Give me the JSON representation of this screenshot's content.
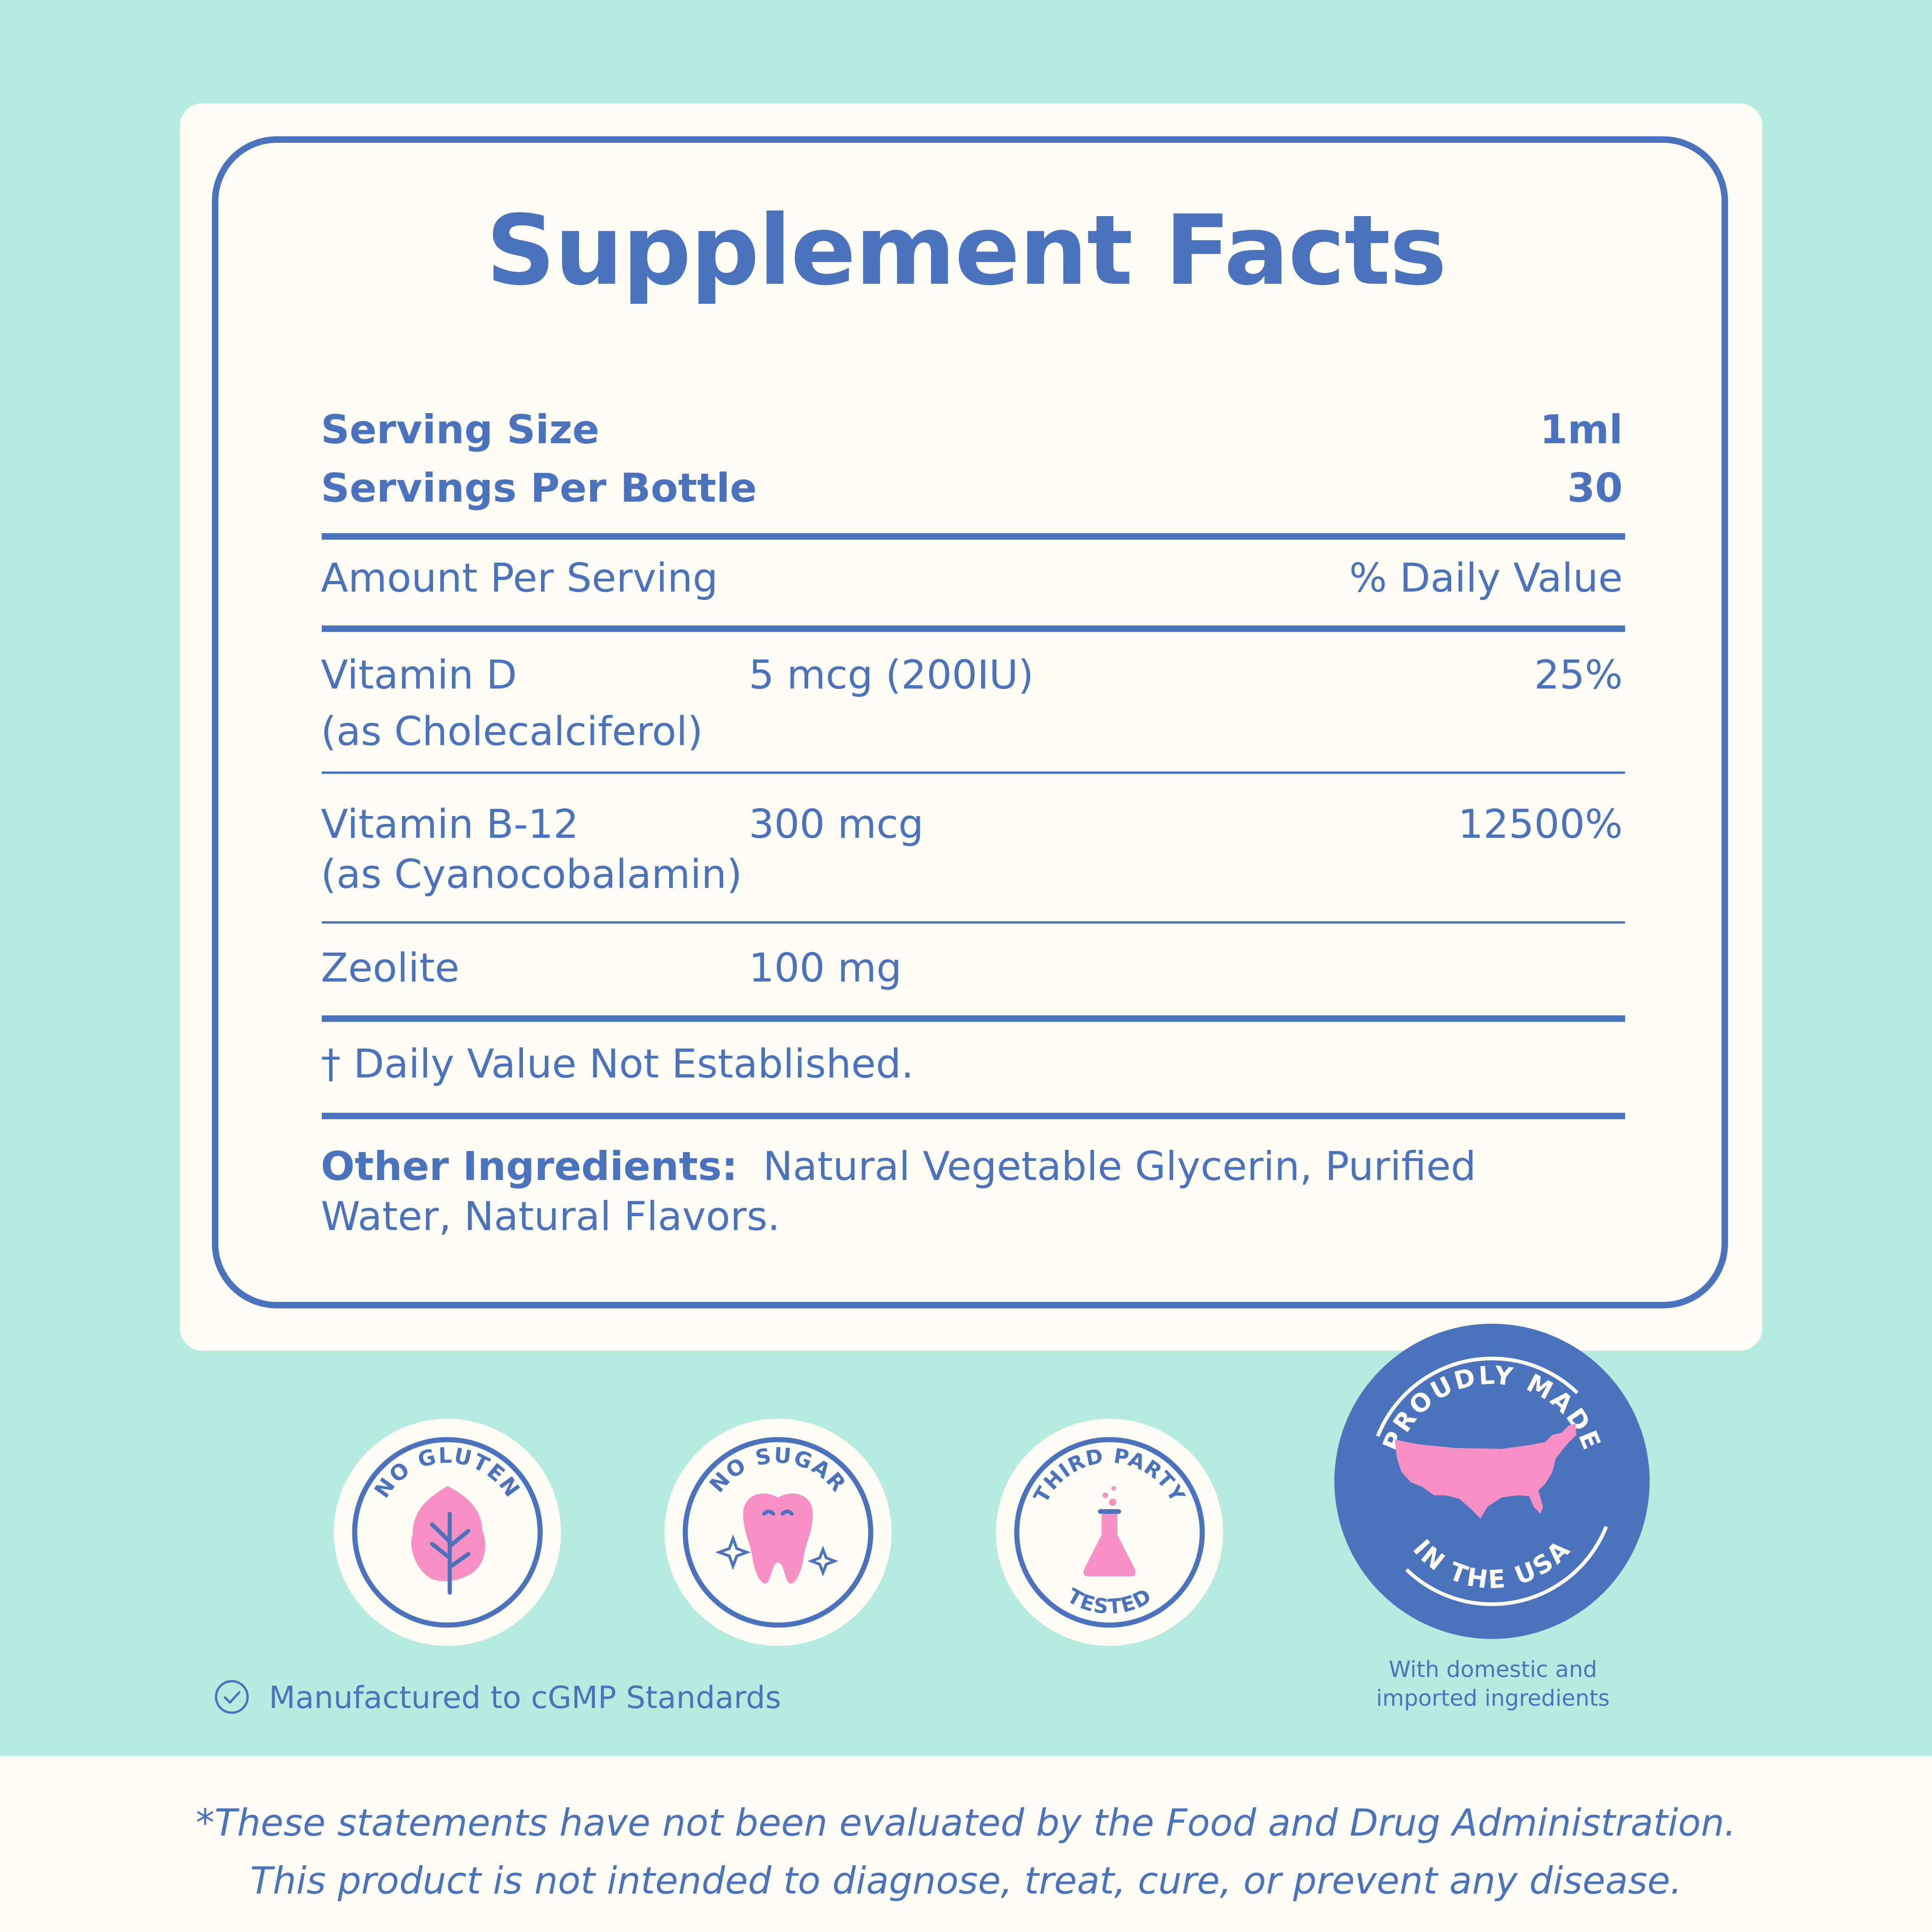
{
  "title": "Supplement Facts",
  "serving": {
    "size_label": "Serving Size",
    "size_value": "1ml",
    "per_label": "Servings Per Bottle",
    "per_value": "30"
  },
  "header": {
    "amount": "Amount Per Serving",
    "dv": "% Daily Value"
  },
  "rows": [
    {
      "name": "Vitamin D",
      "source": "(as Cholecalciferol)",
      "amount": "5 mcg (200IU)",
      "dv": "25%"
    },
    {
      "name": "Vitamin B-12",
      "source": "(as Cyanocobalamin)",
      "amount": "300 mcg",
      "dv": "12500%"
    },
    {
      "name": "Zeolite",
      "amount": "100 mg"
    }
  ],
  "dv_note": "† Daily Value Not Established.",
  "other": {
    "label": "Other Ingredients:",
    "line1": "Natural Vegetable Glycerin, Purified",
    "line2": "Water, Natural Flavors."
  },
  "badges": {
    "gluten": "NO GLUTEN",
    "sugar": "NO SUGAR",
    "third_top": "THIRD PARTY",
    "third_bottom": "TESTED",
    "usa_top": "PROUDLY MADE",
    "usa_bottom": "IN THE USA"
  },
  "icons": [
    "leaf-icon",
    "tooth-icon",
    "flask-icon",
    "usa-map-icon",
    "check-circle-icon"
  ],
  "cgmp": "Manufactured to cGMP Standards",
  "usa_note": {
    "line1": "With domestic and",
    "line2": "imported ingredients"
  },
  "disclaimer": {
    "line1": "*These statements have not been evaluated by the Food and Drug Administration.",
    "line2": "This product is not intended to diagnose, treat, cure, or prevent any disease."
  },
  "colors": {
    "background": "#b6ecdf",
    "card": "#fdfdf5",
    "accent": "#4b73bd",
    "pink": "#f790c4"
  }
}
